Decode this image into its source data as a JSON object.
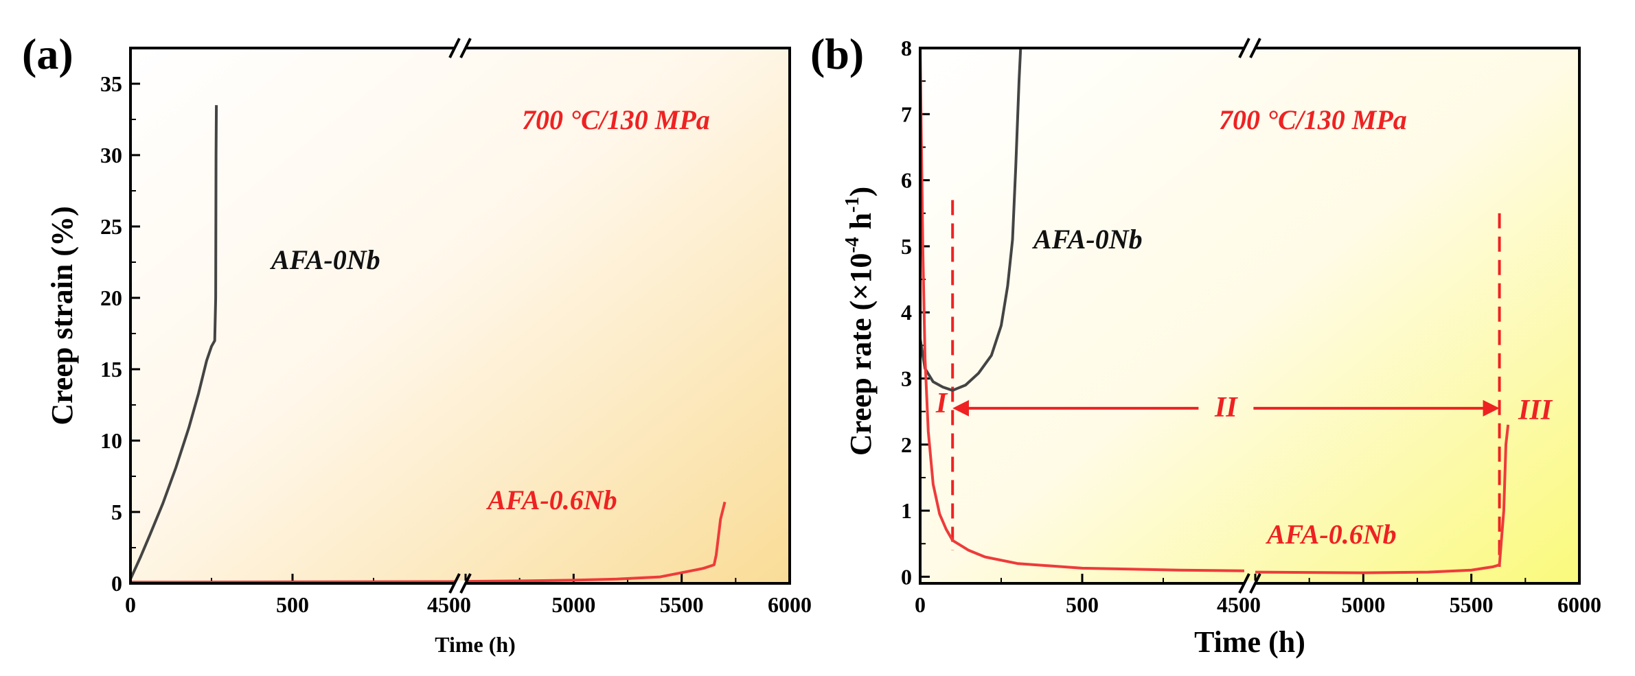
{
  "chart_data": [
    {
      "panel_label": "(a)",
      "type": "line",
      "title": "",
      "xlabel": "Time (h)",
      "ylabel": "Creep strain (%)",
      "condition": "700 °C/130 MPa",
      "x_axis": {
        "broken": true,
        "segment1_range": [
          0,
          1000
        ],
        "segment2_range": [
          4500,
          6000
        ],
        "tick_labels": [
          "0",
          "500",
          "4500",
          "5000",
          "5500",
          "6000"
        ]
      },
      "ylim": [
        0,
        37.5
      ],
      "y_ticks": [
        0,
        5,
        10,
        15,
        20,
        25,
        30,
        35
      ],
      "y_tick_labels": [
        "0",
        "5",
        "10",
        "15",
        "20",
        "25",
        "30",
        "35"
      ],
      "series": [
        {
          "name": "AFA-0Nb",
          "label": "AFA-0Nb",
          "color": "#444444",
          "x": [
            0,
            30,
            60,
            100,
            140,
            180,
            210,
            235,
            250,
            260,
            263,
            264,
            265
          ],
          "y": [
            0.3,
            1.8,
            3.4,
            5.6,
            8.1,
            10.9,
            13.3,
            15.6,
            16.6,
            17.0,
            20,
            30,
            33.5
          ]
        },
        {
          "name": "AFA-0.6Nb",
          "label": "AFA-0.6Nb",
          "color": "#ee3b3b",
          "x": [
            0,
            500,
            1000,
            4500,
            4800,
            5000,
            5200,
            5400,
            5500,
            5600,
            5650,
            5660,
            5680,
            5700
          ],
          "y": [
            0.08,
            0.1,
            0.12,
            0.14,
            0.18,
            0.22,
            0.3,
            0.45,
            0.75,
            1.05,
            1.3,
            2.0,
            4.5,
            5.7
          ]
        }
      ]
    },
    {
      "panel_label": "(b)",
      "type": "line",
      "title": "",
      "xlabel": "Time (h)",
      "ylabel_main": "Creep rate (×10",
      "ylabel_exp1": "-4",
      "ylabel_mid": " h",
      "ylabel_exp2": "-1",
      "ylabel_end": ")",
      "condition": "700 °C/130 MPa",
      "x_axis": {
        "broken": true,
        "segment1_range": [
          0,
          1000
        ],
        "segment2_range": [
          4500,
          6000
        ],
        "tick_labels": [
          "0",
          "500",
          "4500",
          "5000",
          "5500",
          "6000"
        ]
      },
      "ylim": [
        -0.1,
        8
      ],
      "y_ticks": [
        0,
        1,
        2,
        3,
        4,
        5,
        6,
        7,
        8
      ],
      "y_tick_labels": [
        "0",
        "1",
        "2",
        "3",
        "4",
        "5",
        "6",
        "7",
        "8"
      ],
      "stage_labels": [
        "I",
        "II",
        "III"
      ],
      "stage_boundaries_h": [
        100,
        5630
      ],
      "series": [
        {
          "name": "AFA-0Nb",
          "label": "AFA-0Nb",
          "color": "#444444",
          "x": [
            0,
            15,
            40,
            70,
            100,
            140,
            180,
            220,
            250,
            270,
            285,
            295,
            305,
            310
          ],
          "y": [
            3.6,
            3.15,
            2.95,
            2.87,
            2.82,
            2.9,
            3.08,
            3.35,
            3.8,
            4.4,
            5.1,
            6.2,
            7.5,
            8.0
          ]
        },
        {
          "name": "AFA-0.6Nb",
          "label": "AFA-0.6Nb",
          "color": "#ee3b3b",
          "x": [
            0,
            8,
            15,
            25,
            40,
            60,
            80,
            100,
            150,
            200,
            300,
            500,
            800,
            1000,
            4500,
            5000,
            5300,
            5500,
            5600,
            5630,
            5650,
            5660,
            5670
          ],
          "y": [
            8.0,
            5.0,
            3.3,
            2.2,
            1.4,
            0.95,
            0.72,
            0.55,
            0.4,
            0.3,
            0.2,
            0.13,
            0.1,
            0.09,
            0.07,
            0.06,
            0.07,
            0.1,
            0.15,
            0.18,
            1.0,
            2.0,
            2.3
          ]
        }
      ]
    }
  ]
}
